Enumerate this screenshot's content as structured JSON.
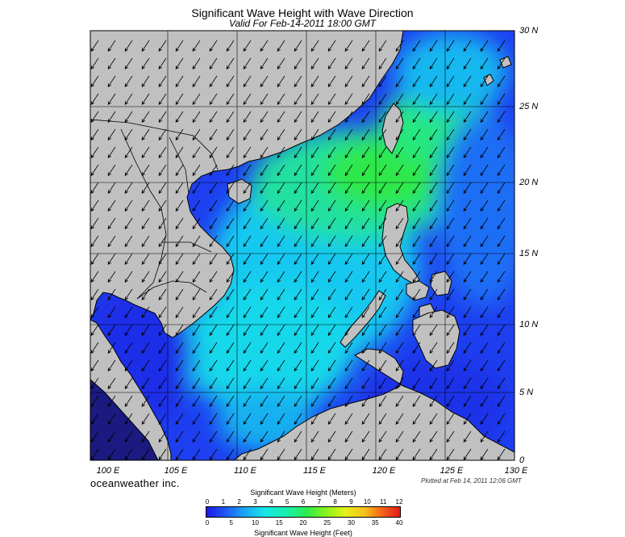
{
  "title": "Significant Wave Height with Wave Direction",
  "subtitle": "Valid For Feb-14-2011 18:00 GMT",
  "map": {
    "lat_labels": [
      "30 N",
      "25 N",
      "20 N",
      "15 N",
      "10 N",
      "5 N",
      "0"
    ],
    "lon_labels": [
      "100 E",
      "105 E",
      "110 E",
      "115 E",
      "120 E",
      "125 E",
      "130 E"
    ],
    "lon_range": [
      100,
      130
    ],
    "lat_range": [
      0,
      30
    ],
    "land_color": "#c0c0c0",
    "wave_direction": "from northeast toward southwest"
  },
  "footer": {
    "brand": "oceanweather inc.",
    "plotted": "Plotted at Feb 14, 2011 12:06 GMT"
  },
  "colorbar": {
    "title_meters": "Significant Wave Height (Meters)",
    "title_feet": "Significant Wave Height (Feet)",
    "meter_ticks": [
      "0",
      "1",
      "2",
      "3",
      "4",
      "5",
      "6",
      "7",
      "8",
      "9",
      "10",
      "11",
      "12"
    ],
    "feet_ticks": [
      "0",
      "5",
      "10",
      "15",
      "20",
      "25",
      "30",
      "35",
      "40"
    ]
  }
}
